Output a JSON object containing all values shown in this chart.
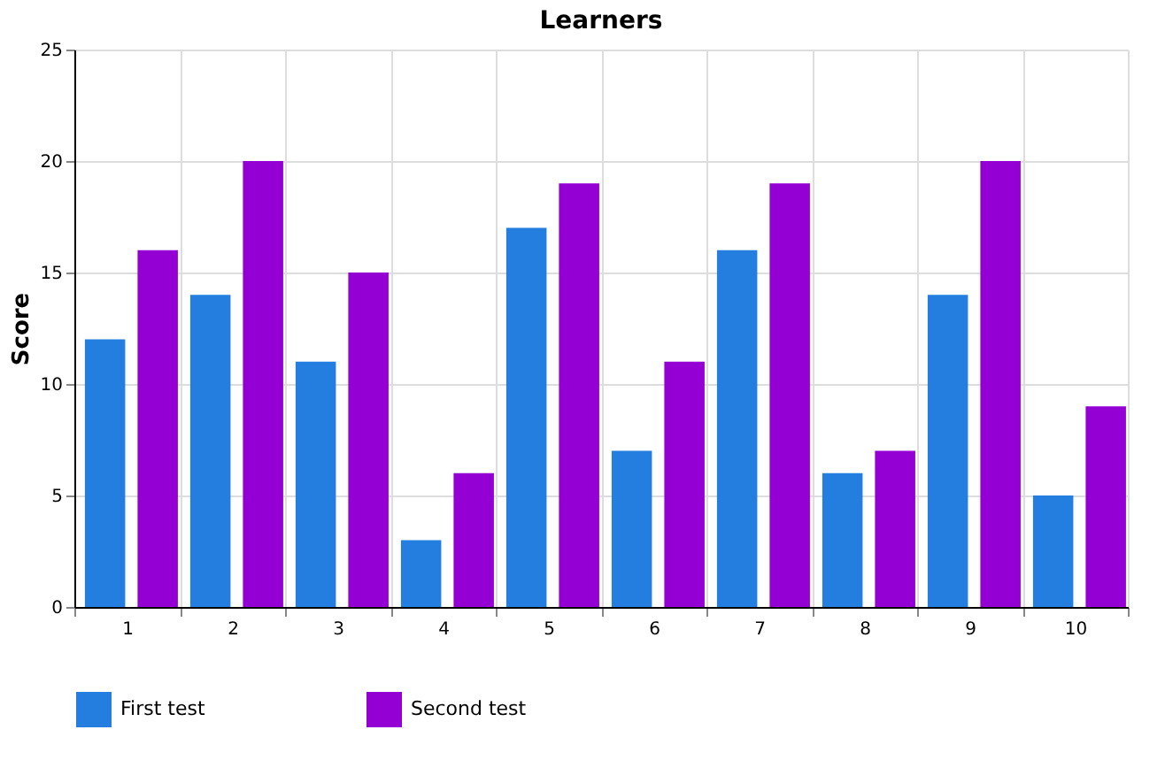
{
  "chart_data": {
    "type": "bar",
    "title": "Learners",
    "ylabel": "Score",
    "categories": [
      "1",
      "2",
      "3",
      "4",
      "5",
      "6",
      "7",
      "8",
      "9",
      "10"
    ],
    "series": [
      {
        "name": "First test",
        "color": "#237ee0",
        "values": [
          12,
          14,
          11,
          3,
          17,
          7,
          16,
          6,
          14,
          5
        ]
      },
      {
        "name": "Second test",
        "color": "#9400d3",
        "values": [
          16,
          20,
          15,
          6,
          19,
          11,
          19,
          7,
          20,
          9
        ]
      }
    ],
    "ylim": [
      0,
      25
    ],
    "yticks": [
      0,
      5,
      10,
      15,
      20,
      25
    ],
    "grid": true,
    "legend": "bottom"
  }
}
